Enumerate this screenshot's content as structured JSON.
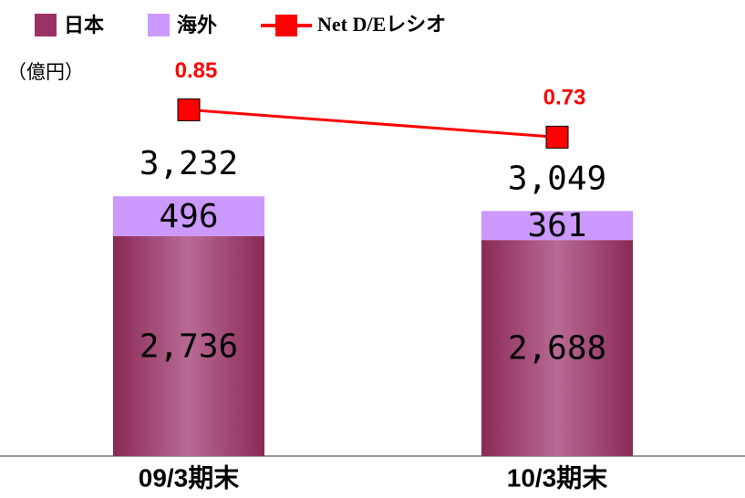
{
  "chart_data": {
    "type": "bar",
    "unit": "（億円）",
    "categories": [
      "09/3期末",
      "10/3期末"
    ],
    "series": [
      {
        "name": "日本",
        "color": "#993366",
        "values": [
          2736,
          2688
        ],
        "value_labels": [
          "2,736",
          "2,688"
        ]
      },
      {
        "name": "海外",
        "color": "#cc99ff",
        "values": [
          496,
          361
        ]
      },
      {
        "name": "Net D/Eレシオ",
        "color": "#ff0000",
        "type": "line",
        "axis": "y2",
        "values": [
          0.85,
          0.73
        ]
      }
    ],
    "totals": [
      3232,
      3049
    ],
    "totals_labels": [
      "3,232",
      "3,049"
    ],
    "ylim": [
      0,
      5300
    ],
    "y2lim": [
      -0.67,
      1.2
    ],
    "stacked": true
  }
}
